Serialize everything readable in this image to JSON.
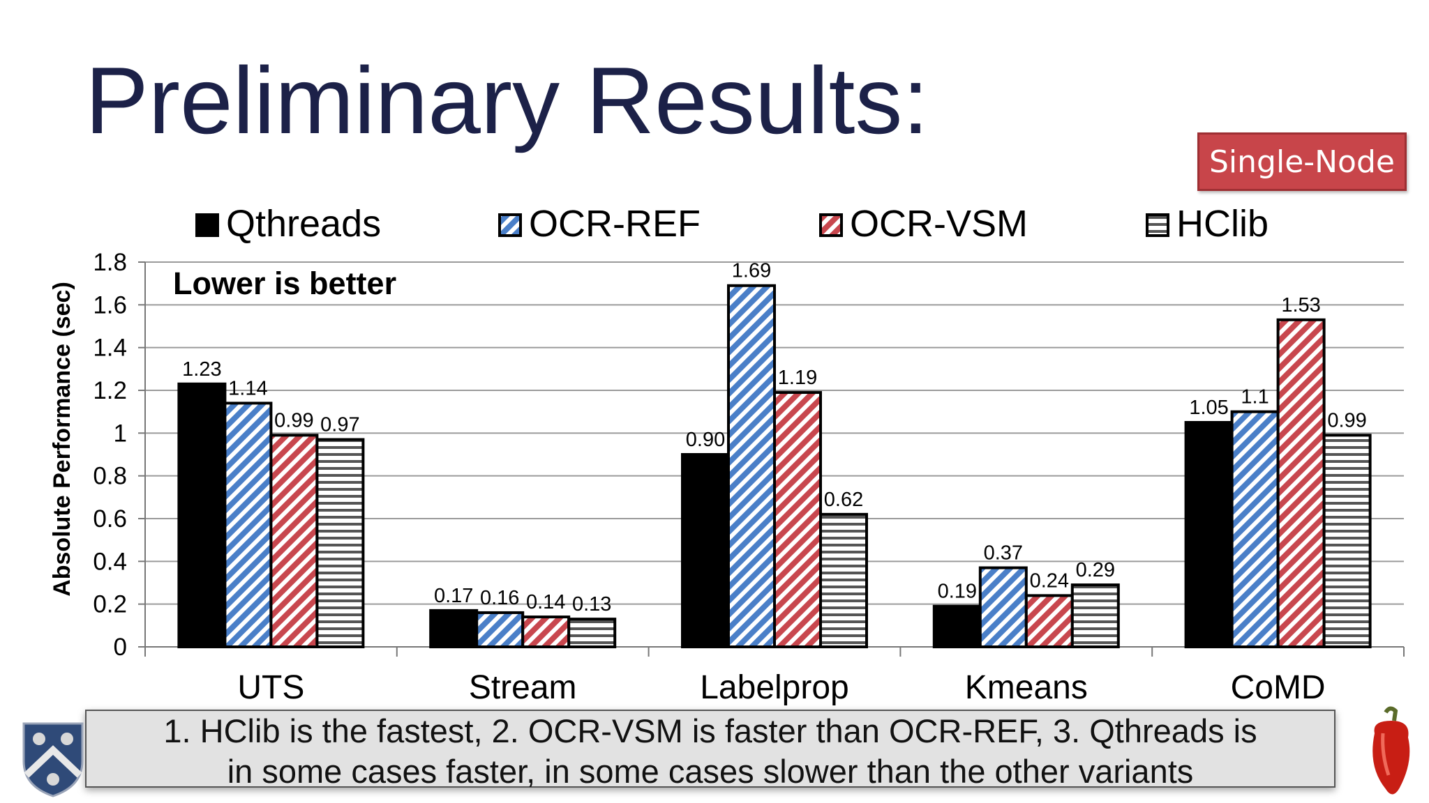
{
  "slide": {
    "title": "Preliminary Results:",
    "badge": "Single-Node",
    "note_line1": "1.  HClib is the fastest, 2. OCR-VSM is faster than OCR-REF, 3. Qthreads is",
    "note_line2": "in some cases faster, in some cases slower than the other variants"
  },
  "colors": {
    "title": "#1c2148",
    "badge": "#c8454a",
    "ocr_ref": "#4a7fc8",
    "ocr_vsm": "#c8474e",
    "qthreads": "#000000",
    "hclib": "#555555"
  },
  "chart_data": {
    "type": "bar",
    "categories": [
      "UTS",
      "Stream",
      "Labelprop",
      "Kmeans",
      "CoMD"
    ],
    "series": [
      {
        "name": "Qthreads",
        "pattern": "solid-black",
        "values": [
          1.23,
          0.17,
          0.9,
          0.19,
          1.05
        ],
        "labels": [
          "1.23",
          "0.17",
          "0.90",
          "0.19",
          "1.05"
        ]
      },
      {
        "name": "OCR-REF",
        "pattern": "blue-diagonal",
        "values": [
          1.14,
          0.16,
          1.69,
          0.37,
          1.1
        ],
        "labels": [
          "1.14",
          "0.16",
          "1.69",
          "0.37",
          "1.1"
        ]
      },
      {
        "name": "OCR-VSM",
        "pattern": "red-diagonal",
        "values": [
          0.99,
          0.14,
          1.19,
          0.24,
          1.53
        ],
        "labels": [
          "0.99",
          "0.14",
          "1.19",
          "0.24",
          "1.53"
        ]
      },
      {
        "name": "HClib",
        "pattern": "horizontal-stripes",
        "values": [
          0.97,
          0.13,
          0.62,
          0.29,
          0.99
        ],
        "labels": [
          "0.97",
          "0.13",
          "0.62",
          "0.29",
          "0.99"
        ]
      }
    ],
    "ylabel": "Absolute Performance (sec)",
    "xlabel": "",
    "ylim": [
      0,
      1.8
    ],
    "yticks": [
      "0",
      "0.2",
      "0.4",
      "0.6",
      "0.8",
      "1",
      "1.2",
      "1.4",
      "1.6",
      "1.8"
    ],
    "grid": true,
    "legend": "top",
    "annotation": "Lower is better"
  }
}
